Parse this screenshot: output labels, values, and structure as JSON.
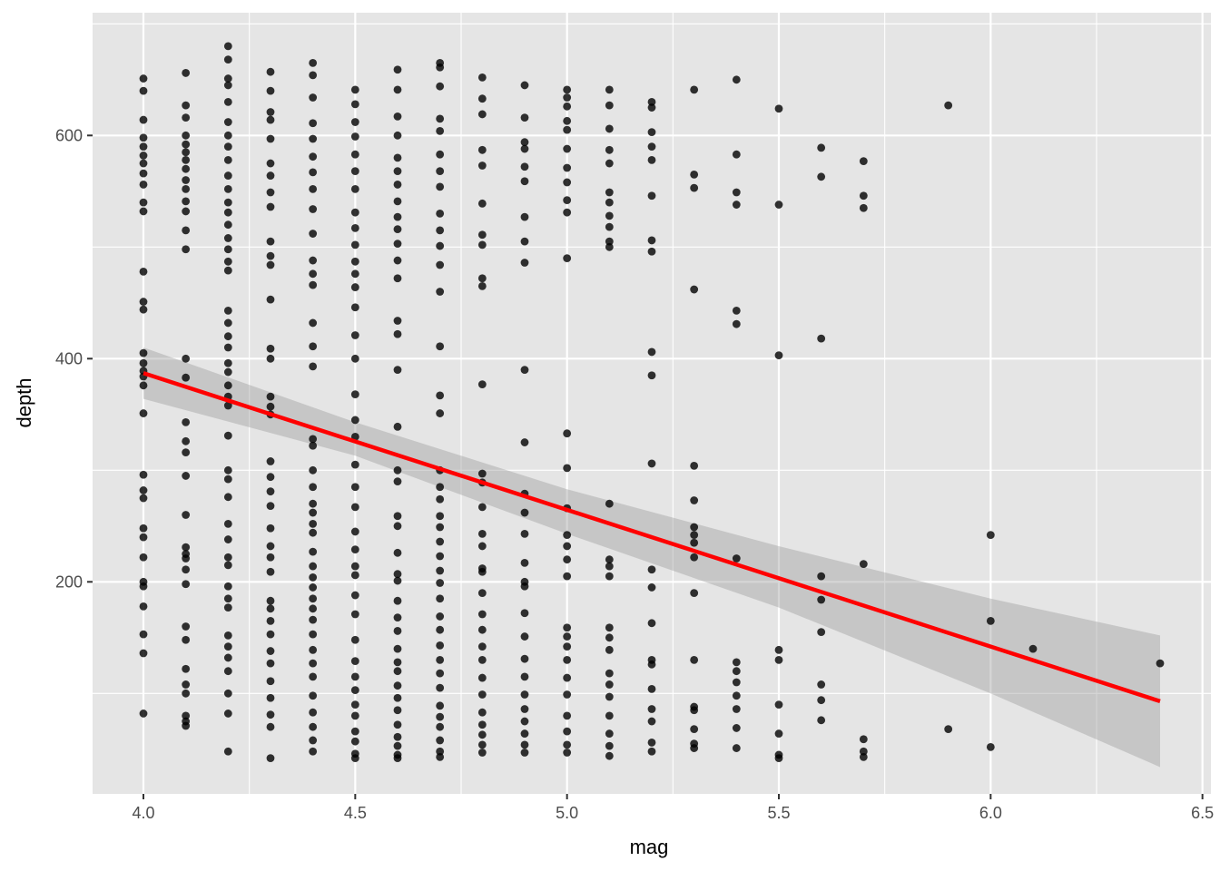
{
  "chart_data": {
    "type": "scatter",
    "title": "",
    "xlabel": "mag",
    "ylabel": "depth",
    "xlim": [
      3.88,
      6.52
    ],
    "ylim": [
      10,
      710
    ],
    "x_ticks": [
      4.0,
      4.5,
      5.0,
      5.5,
      6.0,
      6.5
    ],
    "x_tick_labels": [
      "4.0",
      "4.5",
      "5.0",
      "5.5",
      "6.0",
      "6.5"
    ],
    "y_ticks": [
      200,
      400,
      600
    ],
    "y_tick_labels": [
      "200",
      "400",
      "600"
    ],
    "grid": true,
    "legend": "none",
    "panel_color": "#e5e5e5",
    "point_color": "#000000",
    "fit_color": "#ff0000",
    "band_color": "#999999",
    "trend_line": {
      "method": "linear",
      "x": [
        4.0,
        6.4
      ],
      "y": [
        387,
        93
      ]
    },
    "confidence_band": {
      "x": [
        4.0,
        4.5,
        5.0,
        5.5,
        6.0,
        6.4
      ],
      "upper": [
        410,
        343,
        283,
        232,
        185,
        152
      ],
      "lower": [
        364,
        313,
        243,
        177,
        100,
        34
      ]
    },
    "series": [
      {
        "x": 4.0,
        "y": [
          651,
          640,
          614,
          598,
          590,
          582,
          575,
          566,
          556,
          540,
          532,
          478,
          451,
          444,
          405,
          396,
          389,
          384,
          376,
          351,
          296,
          282,
          275,
          248,
          240,
          222,
          200,
          196,
          178,
          153,
          136,
          82
        ]
      },
      {
        "x": 4.1,
        "y": [
          656,
          627,
          616,
          600,
          592,
          585,
          578,
          570,
          560,
          552,
          541,
          532,
          515,
          498,
          400,
          383,
          343,
          326,
          316,
          295,
          260,
          231,
          225,
          221,
          211,
          198,
          160,
          148,
          122,
          108,
          100,
          80,
          75,
          71
        ]
      },
      {
        "x": 4.2,
        "y": [
          680,
          668,
          651,
          645,
          630,
          612,
          600,
          590,
          578,
          564,
          552,
          540,
          531,
          520,
          508,
          498,
          487,
          479,
          443,
          432,
          420,
          410,
          396,
          388,
          376,
          366,
          358,
          331,
          300,
          292,
          276,
          252,
          238,
          222,
          215,
          196,
          185,
          177,
          152,
          142,
          132,
          120,
          100,
          82,
          48
        ]
      },
      {
        "x": 4.3,
        "y": [
          657,
          640,
          621,
          614,
          597,
          575,
          564,
          549,
          536,
          505,
          492,
          484,
          453,
          409,
          400,
          366,
          357,
          350,
          308,
          294,
          281,
          268,
          248,
          232,
          222,
          209,
          183,
          176,
          165,
          153,
          138,
          127,
          111,
          96,
          81,
          70,
          42
        ]
      },
      {
        "x": 4.4,
        "y": [
          665,
          654,
          634,
          611,
          597,
          581,
          567,
          552,
          534,
          512,
          488,
          476,
          466,
          432,
          411,
          393,
          328,
          322,
          300,
          285,
          270,
          262,
          252,
          244,
          227,
          214,
          204,
          195,
          185,
          176,
          166,
          153,
          139,
          127,
          115,
          98,
          83,
          70,
          58,
          48
        ]
      },
      {
        "x": 4.5,
        "y": [
          641,
          628,
          612,
          599,
          583,
          568,
          552,
          531,
          517,
          502,
          487,
          476,
          464,
          446,
          421,
          400,
          368,
          345,
          330,
          305,
          285,
          267,
          245,
          229,
          214,
          206,
          188,
          171,
          148,
          129,
          115,
          103,
          90,
          80,
          66,
          57,
          46,
          42
        ]
      },
      {
        "x": 4.6,
        "y": [
          659,
          641,
          617,
          600,
          580,
          568,
          556,
          541,
          527,
          516,
          503,
          488,
          472,
          434,
          422,
          390,
          339,
          300,
          290,
          259,
          250,
          226,
          207,
          201,
          183,
          168,
          156,
          140,
          128,
          120,
          107,
          96,
          85,
          72,
          61,
          53,
          45,
          42
        ]
      },
      {
        "x": 4.7,
        "y": [
          665,
          661,
          644,
          615,
          604,
          583,
          568,
          554,
          530,
          515,
          501,
          484,
          460,
          411,
          367,
          351,
          300,
          285,
          274,
          259,
          249,
          236,
          223,
          210,
          199,
          185,
          169,
          157,
          143,
          130,
          118,
          105,
          89,
          79,
          70,
          58,
          48,
          43
        ]
      },
      {
        "x": 4.8,
        "y": [
          652,
          633,
          619,
          587,
          573,
          539,
          511,
          502,
          472,
          465,
          377,
          297,
          289,
          267,
          243,
          232,
          212,
          209,
          190,
          171,
          157,
          142,
          130,
          114,
          99,
          83,
          72,
          63,
          54,
          47
        ]
      },
      {
        "x": 4.9,
        "y": [
          645,
          616,
          594,
          588,
          572,
          559,
          527,
          505,
          486,
          390,
          325,
          279,
          262,
          243,
          217,
          200,
          196,
          172,
          151,
          131,
          115,
          99,
          86,
          75,
          64,
          54,
          47
        ]
      },
      {
        "x": 5.0,
        "y": [
          641,
          634,
          626,
          613,
          605,
          588,
          571,
          558,
          542,
          531,
          490,
          333,
          302,
          266,
          242,
          232,
          220,
          205,
          159,
          151,
          142,
          130,
          114,
          99,
          80,
          66,
          54,
          47
        ]
      },
      {
        "x": 5.1,
        "y": [
          641,
          627,
          606,
          587,
          575,
          549,
          540,
          528,
          518,
          505,
          500,
          270,
          220,
          214,
          205,
          159,
          150,
          139,
          118,
          108,
          97,
          80,
          64,
          53,
          44
        ]
      },
      {
        "x": 5.2,
        "y": [
          630,
          625,
          603,
          590,
          578,
          546,
          506,
          496,
          406,
          385,
          306,
          211,
          195,
          163,
          130,
          126,
          104,
          86,
          75,
          56,
          48
        ]
      },
      {
        "x": 5.3,
        "y": [
          641,
          565,
          553,
          462,
          304,
          273,
          249,
          242,
          235,
          222,
          190,
          130,
          88,
          85,
          68,
          55,
          51
        ]
      },
      {
        "x": 5.4,
        "y": [
          650,
          583,
          549,
          538,
          443,
          431,
          221,
          128,
          120,
          110,
          98,
          86,
          69,
          51
        ]
      },
      {
        "x": 5.5,
        "y": [
          624,
          538,
          403,
          139,
          130,
          90,
          64,
          45,
          42
        ]
      },
      {
        "x": 5.6,
        "y": [
          589,
          563,
          418,
          205,
          184,
          155,
          108,
          94,
          76
        ]
      },
      {
        "x": 5.7,
        "y": [
          577,
          546,
          535,
          216,
          59,
          48,
          43
        ]
      },
      {
        "x": 5.9,
        "y": [
          627,
          68
        ]
      },
      {
        "x": 6.0,
        "y": [
          242,
          165,
          52
        ]
      },
      {
        "x": 6.1,
        "y": [
          140
        ]
      },
      {
        "x": 6.4,
        "y": [
          127
        ]
      }
    ]
  }
}
